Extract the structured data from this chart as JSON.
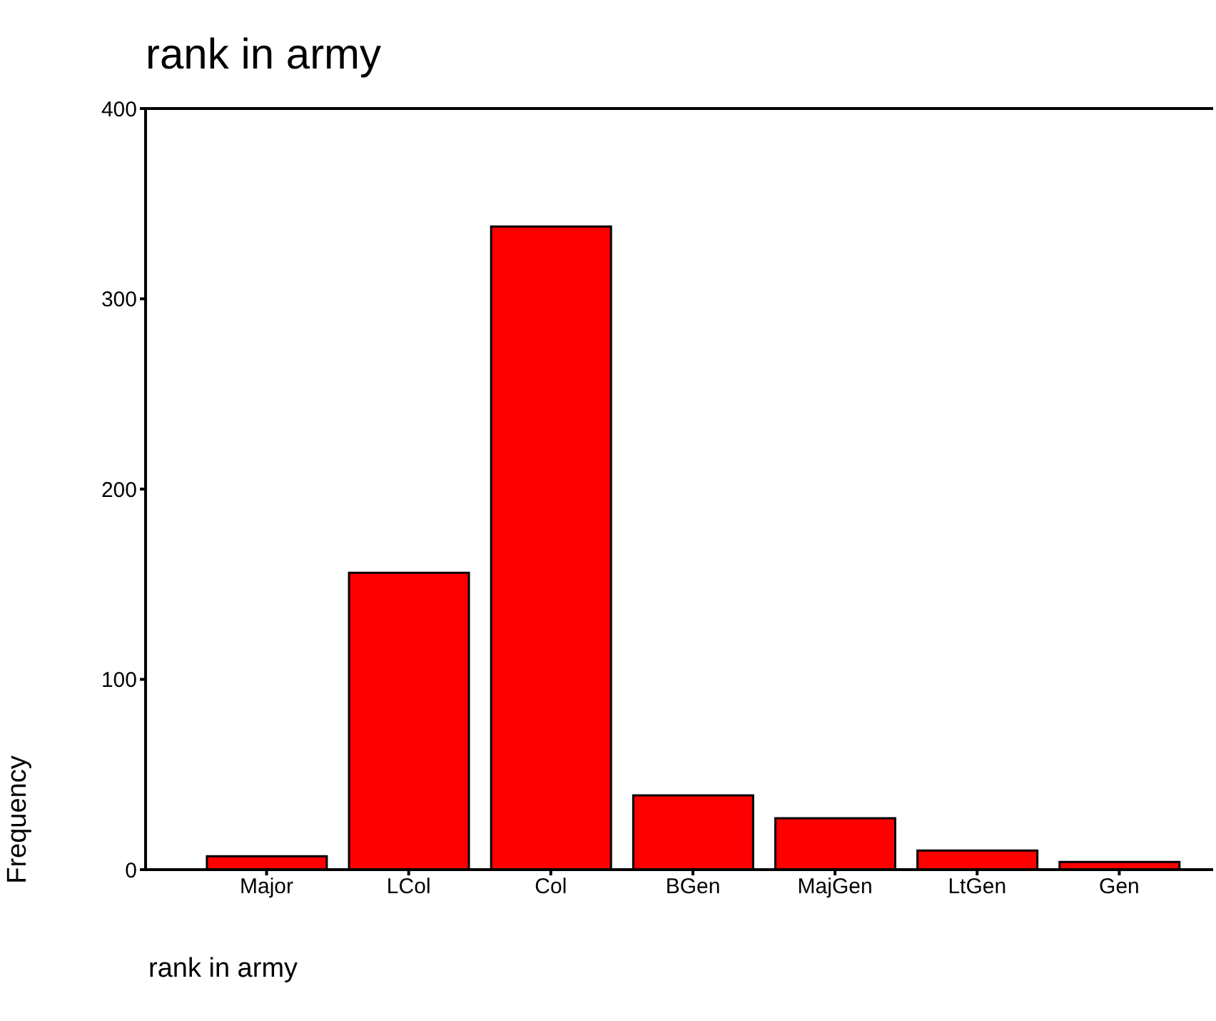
{
  "chart_data": {
    "type": "bar",
    "title": "rank in army",
    "xlabel": "rank in army",
    "ylabel": "Frequency",
    "categories": [
      "Major",
      "LCol",
      "Col",
      "BGen",
      "MajGen",
      "LtGen",
      "Gen"
    ],
    "values": [
      7,
      156,
      338,
      39,
      27,
      10,
      4
    ],
    "color": "#ff0000",
    "ylim": [
      0,
      400
    ],
    "yticks": [
      0,
      100,
      200,
      300,
      400
    ],
    "grid": false
  }
}
